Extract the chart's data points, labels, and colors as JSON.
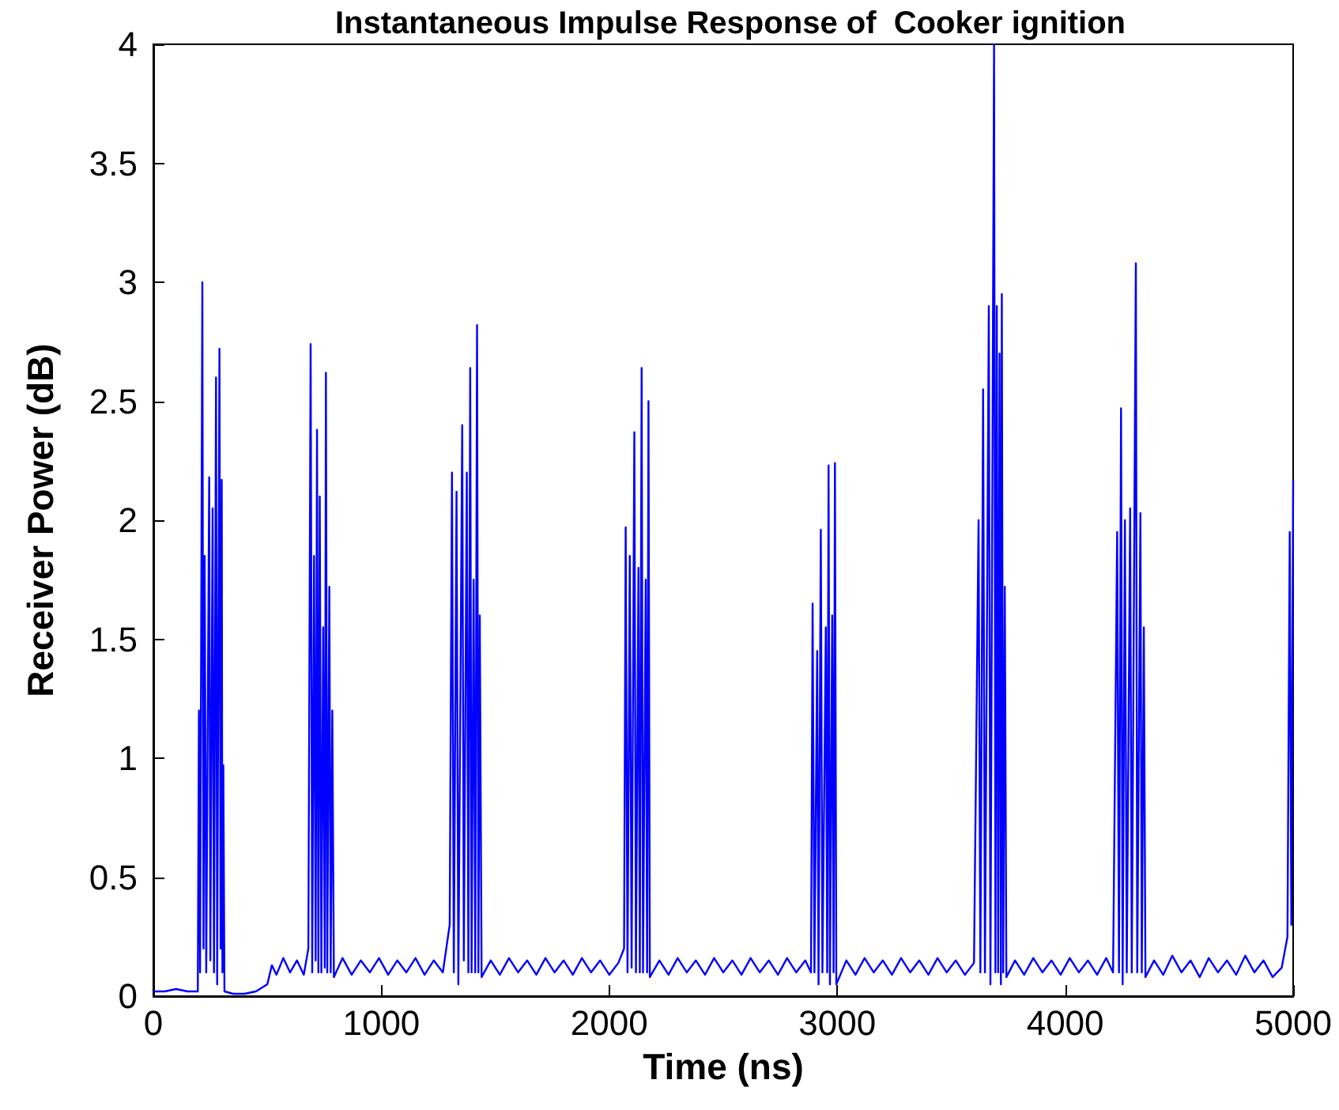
{
  "chart_data": {
    "type": "line",
    "title": "Instantaneous Impulse Response of  Cooker ignition",
    "xlabel": "Time (ns)",
    "ylabel": "Receiver Power (dB)",
    "xlim": [
      0,
      5000
    ],
    "xticks": [
      0,
      1000,
      2000,
      3000,
      4000,
      5000
    ],
    "ylim": [
      0,
      4
    ],
    "yticks": [
      0,
      0.5,
      1,
      1.5,
      2,
      2.5,
      3,
      3.5,
      4
    ],
    "grid": false,
    "marker": "none",
    "line_style": "solid",
    "series": [
      {
        "color": "#0000ff",
        "x": [
          0,
          50,
          100,
          150,
          195,
          200,
          205,
          215,
          220,
          225,
          232,
          245,
          250,
          260,
          266,
          275,
          280,
          290,
          295,
          300,
          303,
          307,
          312,
          350,
          400,
          450,
          500,
          520,
          540,
          570,
          600,
          630,
          660,
          680,
          690,
          697,
          705,
          712,
          718,
          724,
          730,
          737,
          745,
          752,
          757,
          763,
          772,
          778,
          785,
          792,
          830,
          870,
          910,
          950,
          990,
          1030,
          1070,
          1110,
          1150,
          1190,
          1230,
          1270,
          1300,
          1310,
          1318,
          1330,
          1338,
          1355,
          1362,
          1375,
          1382,
          1390,
          1396,
          1405,
          1412,
          1420,
          1426,
          1432,
          1440,
          1480,
          1520,
          1560,
          1600,
          1640,
          1680,
          1720,
          1760,
          1800,
          1840,
          1880,
          1920,
          1960,
          2000,
          2040,
          2065,
          2072,
          2080,
          2090,
          2098,
          2110,
          2117,
          2128,
          2134,
          2142,
          2148,
          2160,
          2166,
          2172,
          2178,
          2220,
          2260,
          2300,
          2340,
          2380,
          2420,
          2460,
          2500,
          2540,
          2580,
          2620,
          2660,
          2700,
          2740,
          2780,
          2820,
          2860,
          2885,
          2892,
          2900,
          2912,
          2918,
          2928,
          2935,
          2950,
          2956,
          2962,
          2968,
          2978,
          2984,
          2990,
          2996,
          3040,
          3080,
          3120,
          3160,
          3200,
          3240,
          3280,
          3320,
          3360,
          3400,
          3440,
          3480,
          3520,
          3560,
          3600,
          3620,
          3628,
          3640,
          3648,
          3665,
          3672,
          3688,
          3694,
          3700,
          3706,
          3712,
          3718,
          3722,
          3728,
          3735,
          3742,
          3780,
          3820,
          3860,
          3900,
          3940,
          3980,
          4020,
          4060,
          4100,
          4140,
          4180,
          4210,
          4228,
          4236,
          4245,
          4252,
          4262,
          4270,
          4285,
          4292,
          4310,
          4316,
          4330,
          4336,
          4345,
          4352,
          4390,
          4430,
          4470,
          4510,
          4550,
          4590,
          4630,
          4670,
          4710,
          4750,
          4790,
          4830,
          4870,
          4910,
          4950,
          4975,
          4985,
          4992,
          5000
        ],
        "values": [
          0.02,
          0.02,
          0.03,
          0.02,
          0.02,
          1.2,
          0.1,
          3.0,
          0.2,
          1.85,
          0.1,
          2.18,
          0.15,
          2.05,
          0.1,
          2.6,
          0.05,
          2.72,
          0.2,
          2.17,
          0.1,
          0.97,
          0.02,
          0.01,
          0.01,
          0.02,
          0.05,
          0.13,
          0.09,
          0.16,
          0.1,
          0.15,
          0.09,
          0.2,
          2.74,
          0.1,
          1.85,
          0.15,
          2.38,
          0.1,
          2.1,
          0.1,
          1.55,
          0.12,
          2.62,
          0.1,
          1.72,
          0.1,
          1.2,
          0.08,
          0.16,
          0.09,
          0.15,
          0.1,
          0.16,
          0.09,
          0.15,
          0.1,
          0.16,
          0.09,
          0.15,
          0.1,
          0.3,
          2.2,
          0.1,
          2.12,
          0.05,
          2.4,
          0.15,
          2.2,
          0.1,
          2.64,
          0.1,
          1.75,
          0.1,
          2.82,
          0.1,
          1.6,
          0.08,
          0.15,
          0.09,
          0.16,
          0.1,
          0.15,
          0.09,
          0.16,
          0.1,
          0.15,
          0.09,
          0.16,
          0.1,
          0.15,
          0.09,
          0.14,
          0.2,
          1.97,
          0.1,
          1.85,
          0.12,
          2.37,
          0.1,
          1.8,
          0.1,
          2.64,
          0.1,
          1.75,
          0.1,
          2.5,
          0.08,
          0.15,
          0.09,
          0.16,
          0.1,
          0.15,
          0.09,
          0.16,
          0.1,
          0.15,
          0.09,
          0.16,
          0.1,
          0.15,
          0.09,
          0.16,
          0.1,
          0.15,
          0.1,
          1.65,
          0.1,
          1.45,
          0.05,
          1.96,
          0.1,
          1.55,
          0.1,
          2.23,
          0.05,
          1.6,
          0.1,
          2.24,
          0.05,
          0.15,
          0.09,
          0.16,
          0.1,
          0.15,
          0.09,
          0.16,
          0.1,
          0.15,
          0.09,
          0.16,
          0.1,
          0.15,
          0.09,
          0.14,
          2.0,
          0.1,
          2.55,
          0.1,
          2.9,
          0.05,
          4.0,
          0.1,
          2.9,
          0.1,
          2.7,
          0.05,
          2.95,
          0.1,
          1.72,
          0.08,
          0.15,
          0.09,
          0.16,
          0.1,
          0.15,
          0.09,
          0.16,
          0.1,
          0.15,
          0.09,
          0.16,
          0.1,
          1.95,
          0.1,
          2.47,
          0.05,
          2.0,
          0.1,
          2.05,
          0.1,
          3.08,
          0.1,
          2.03,
          0.1,
          1.55,
          0.08,
          0.15,
          0.09,
          0.17,
          0.1,
          0.15,
          0.08,
          0.16,
          0.1,
          0.15,
          0.09,
          0.17,
          0.1,
          0.15,
          0.08,
          0.12,
          0.25,
          1.95,
          0.3,
          2.17
        ]
      }
    ]
  }
}
